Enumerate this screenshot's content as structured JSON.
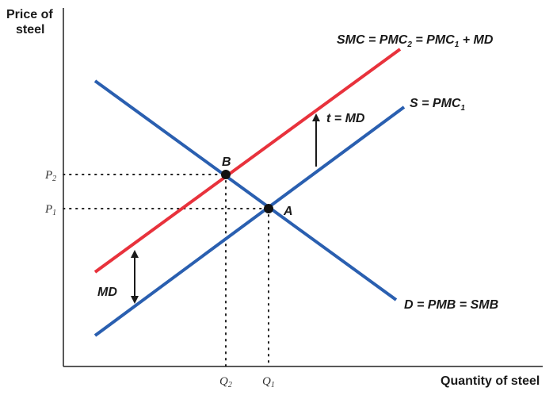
{
  "axes": {
    "y_label_line1": "Price of",
    "y_label_line2": "steel",
    "x_label": "Quantity of steel"
  },
  "curves": {
    "smc": {
      "label": "SMC = PMC",
      "sub1": "2",
      "mid": " = PMC",
      "sub2": "1",
      "tail": " + MD",
      "color": "#e8323c"
    },
    "supply": {
      "label": "S = PMC",
      "sub": "1",
      "color": "#2a5fb0"
    },
    "demand": {
      "label": "D = PMB = SMB",
      "color": "#2a5fb0"
    }
  },
  "points": {
    "b": "B",
    "a": "A"
  },
  "ticks": {
    "p2": "P",
    "p2_sub": "2",
    "p1": "P",
    "p1_sub": "1",
    "q2": "Q",
    "q2_sub": "2",
    "q1": "Q",
    "q1_sub": "1"
  },
  "annotations": {
    "tax": "t = MD",
    "md": "MD"
  }
}
